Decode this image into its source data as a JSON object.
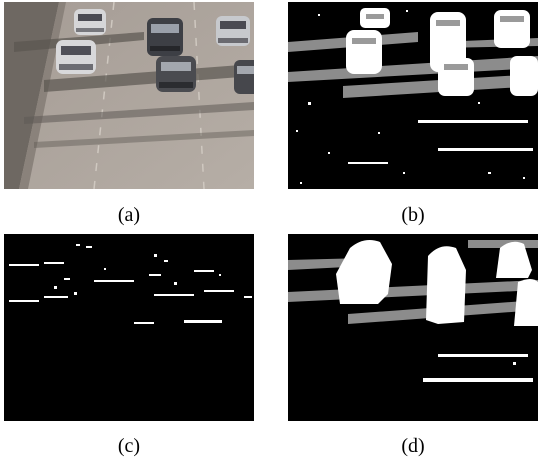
{
  "figure": {
    "panels": [
      {
        "id": "a",
        "caption": "(a)",
        "content": "highway-traffic-photo"
      },
      {
        "id": "b",
        "caption": "(b)",
        "content": "segmentation-mask-with-shadows"
      },
      {
        "id": "c",
        "caption": "(c)",
        "content": "sparse-detection-mask"
      },
      {
        "id": "d",
        "caption": "(d)",
        "content": "clean-segmentation-mask"
      }
    ],
    "colors": {
      "foreground": "#ffffff",
      "shadow": "#8c8c8c",
      "background": "#000000"
    }
  }
}
